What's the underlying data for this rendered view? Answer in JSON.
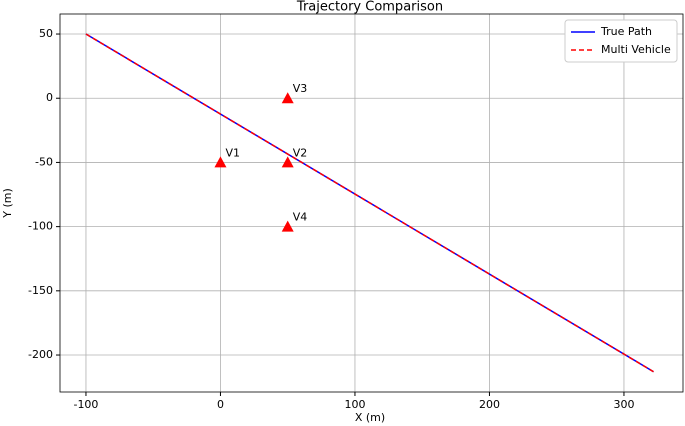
{
  "chart_data": {
    "type": "line",
    "title": "Trajectory Comparison",
    "x_label": "X (m)",
    "y_label": "Y (m)",
    "series": [
      {
        "name": "True Path",
        "color": "#0000ff",
        "dash": "solid",
        "x": [
          -100,
          322
        ],
        "values": [
          50,
          -213
        ]
      },
      {
        "name": "Multi Vehicle",
        "color": "#ff0000",
        "dash": "dashed",
        "x": [
          -100,
          322
        ],
        "values": [
          50,
          -213
        ]
      }
    ],
    "markers": {
      "labels": [
        "V1",
        "V2",
        "V3",
        "V4"
      ],
      "x": [
        0,
        50,
        50,
        50
      ],
      "y": [
        -50,
        -50,
        0,
        -100
      ],
      "color": "#ff0000"
    },
    "xlim": [
      -119.3,
      343.9
    ],
    "ylim": [
      -228.8,
      65.6
    ],
    "xticks": [
      -100,
      0,
      100,
      200,
      300
    ],
    "yticks": [
      -200,
      -150,
      -100,
      -50,
      0,
      50
    ],
    "grid": true,
    "legend": "upper right"
  }
}
